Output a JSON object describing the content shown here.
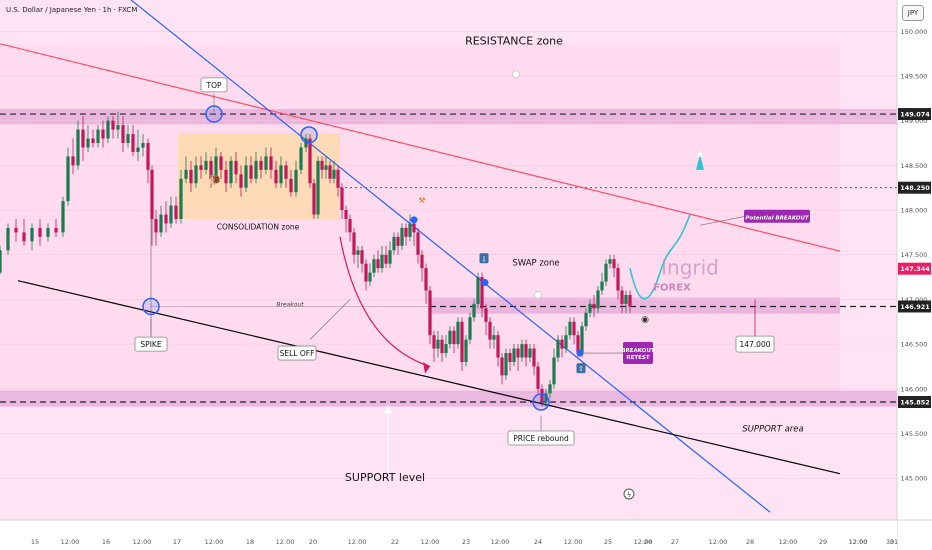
{
  "header": {
    "symbol": "U.S. Dollar / Japanese Yen · 1h · FXCM",
    "currency_button": "JPY"
  },
  "colors": {
    "background": "#fde3f3",
    "up_candle": "#1b7a4f",
    "down_candle": "#c2185b",
    "resistance_line": "#ff4d6d",
    "trend_line": "#2962ff",
    "support_line": "#000000",
    "projection": "#2ec4d6",
    "label_purple": "#9c27b0"
  },
  "chart_data": {
    "type": "candlestick",
    "y_axis": {
      "min": 144.7,
      "max": 150.35,
      "ticks": [
        "150.000",
        "149.500",
        "149.000",
        "148.500",
        "148.000",
        "147.500",
        "147.000",
        "146.500",
        "146.000",
        "145.500",
        "145.000"
      ]
    },
    "x_axis": {
      "ticks": [
        "15",
        "12:00",
        "16",
        "12:00",
        "17",
        "12:00",
        "18",
        "12:00",
        "20",
        "12:00",
        "22",
        "12:00",
        "23",
        "12:00",
        "24",
        "12:00",
        "25",
        "12:00",
        "26",
        "27",
        "12:00",
        "28",
        "12:00",
        "29",
        "12:00",
        "30",
        "12:00",
        "31"
      ]
    },
    "price_tags": [
      {
        "label": "149.074",
        "value": 149.074,
        "color": "#222222"
      },
      {
        "label": "148.250",
        "value": 148.25,
        "color": "#222222"
      },
      {
        "label": "147.344",
        "value": 147.344,
        "color": "#e91e63"
      },
      {
        "label": "146.921",
        "value": 146.921,
        "color": "#222222"
      },
      {
        "label": "145.852",
        "value": 145.852,
        "color": "#222222"
      }
    ],
    "zones": {
      "resistance": [
        148.96,
        149.13
      ],
      "swap": [
        146.84,
        147.02
      ],
      "support": [
        145.8,
        145.98
      ]
    },
    "trend_lines": {
      "resistance": [
        [
          0.0,
          149.86
        ],
        [
          840.0,
          147.54
        ]
      ],
      "blue": [
        [
          120.0,
          150.45
        ],
        [
          770.0,
          144.62
        ]
      ],
      "support": [
        [
          18.0,
          147.21
        ],
        [
          840.0,
          145.05
        ]
      ]
    },
    "annotations": {
      "resistance_zone": "RESISTANCE zone",
      "top": "TOP",
      "consolidation_zone": "CONSOLIDATION zone",
      "spike": "SPIKE",
      "sell_off": "SELL OFF",
      "swap_zone": "SWAP zone",
      "breakout": "Breakout",
      "potential_breakout": "Potential BREAKOUT",
      "breakout_retest": "BREAKOUT RETEST",
      "price_rebound": "PRICE rebound",
      "support_area": "SUPPORT area",
      "support_level": "SUPPORT level",
      "target_price": "147.000",
      "watermark": "Ingrid",
      "watermark_sub": "FOREX"
    },
    "candles": [
      [
        0,
        147.3,
        147.55,
        147.28,
        147.6
      ],
      [
        8,
        147.55,
        147.8,
        147.5,
        147.85
      ],
      [
        16,
        147.8,
        147.75,
        147.65,
        147.9
      ],
      [
        24,
        147.75,
        147.65,
        147.6,
        147.9
      ],
      [
        32,
        147.65,
        147.8,
        147.55,
        147.85
      ],
      [
        40,
        147.8,
        147.7,
        147.6,
        147.9
      ],
      [
        48,
        147.7,
        147.8,
        147.65,
        147.85
      ],
      [
        56,
        147.8,
        147.75,
        147.7,
        147.9
      ],
      [
        63,
        147.75,
        148.1,
        147.7,
        148.15
      ],
      [
        68,
        148.1,
        148.6,
        148.05,
        148.7
      ],
      [
        73,
        148.6,
        148.5,
        148.4,
        148.8
      ],
      [
        78,
        148.5,
        148.9,
        148.45,
        149.0
      ],
      [
        83,
        148.9,
        148.7,
        148.55,
        149.05
      ],
      [
        88,
        148.7,
        148.8,
        148.65,
        148.95
      ],
      [
        93,
        148.8,
        148.75,
        148.7,
        148.9
      ],
      [
        98,
        148.75,
        148.9,
        148.7,
        148.95
      ],
      [
        103,
        148.9,
        148.8,
        148.7,
        149.0
      ],
      [
        108,
        148.8,
        149.0,
        148.75,
        149.05
      ],
      [
        113,
        149.0,
        148.9,
        148.8,
        149.05
      ],
      [
        118,
        148.9,
        148.95,
        148.8,
        149.1
      ],
      [
        123,
        148.95,
        148.75,
        148.65,
        149.05
      ],
      [
        128,
        148.75,
        148.85,
        148.7,
        148.95
      ],
      [
        133,
        148.85,
        148.65,
        148.6,
        148.95
      ],
      [
        138,
        148.65,
        148.7,
        148.55,
        148.9
      ],
      [
        143,
        148.7,
        148.75,
        148.6,
        148.85
      ],
      [
        148,
        148.75,
        148.45,
        148.3,
        148.8
      ],
      [
        152,
        148.45,
        147.9,
        147.6,
        148.5
      ],
      [
        156,
        147.9,
        147.75,
        147.6,
        148.0
      ],
      [
        161,
        147.75,
        147.95,
        147.7,
        148.05
      ],
      [
        166,
        147.95,
        147.85,
        147.75,
        148.1
      ],
      [
        171,
        147.85,
        148.05,
        147.8,
        148.15
      ],
      [
        176,
        148.05,
        147.9,
        147.85,
        148.15
      ],
      [
        181,
        147.9,
        148.35,
        147.85,
        148.45
      ],
      [
        186,
        148.35,
        148.45,
        148.3,
        148.6
      ],
      [
        191,
        148.45,
        148.3,
        148.2,
        148.55
      ],
      [
        196,
        148.3,
        148.5,
        148.25,
        148.6
      ],
      [
        201,
        148.5,
        148.45,
        148.35,
        148.6
      ],
      [
        206,
        148.45,
        148.55,
        148.4,
        148.65
      ],
      [
        211,
        148.55,
        148.35,
        148.25,
        148.6
      ],
      [
        216,
        148.35,
        148.6,
        148.3,
        148.7
      ],
      [
        221,
        148.6,
        148.45,
        148.35,
        148.65
      ],
      [
        226,
        148.45,
        148.3,
        148.2,
        148.55
      ],
      [
        231,
        148.3,
        148.55,
        148.25,
        148.6
      ],
      [
        236,
        148.55,
        148.4,
        148.3,
        148.65
      ],
      [
        241,
        148.4,
        148.25,
        148.15,
        148.5
      ],
      [
        246,
        148.25,
        148.5,
        148.2,
        148.6
      ],
      [
        251,
        148.5,
        148.35,
        148.3,
        148.6
      ],
      [
        256,
        148.35,
        148.55,
        148.3,
        148.65
      ],
      [
        261,
        148.55,
        148.45,
        148.35,
        148.6
      ],
      [
        266,
        148.45,
        148.6,
        148.4,
        148.7
      ],
      [
        271,
        148.6,
        148.45,
        148.35,
        148.7
      ],
      [
        276,
        148.45,
        148.3,
        148.25,
        148.55
      ],
      [
        281,
        148.3,
        148.5,
        148.25,
        148.6
      ],
      [
        286,
        148.5,
        148.35,
        148.25,
        148.55
      ],
      [
        291,
        148.35,
        148.2,
        148.15,
        148.45
      ],
      [
        296,
        148.2,
        148.45,
        148.15,
        148.55
      ],
      [
        301,
        148.45,
        148.7,
        148.4,
        148.75
      ],
      [
        306,
        148.7,
        148.8,
        148.65,
        148.85
      ],
      [
        310,
        148.8,
        148.3,
        148.25,
        148.85
      ],
      [
        314,
        148.3,
        147.95,
        147.9,
        148.35
      ],
      [
        318,
        147.95,
        148.55,
        147.9,
        148.6
      ],
      [
        322,
        148.55,
        148.45,
        148.35,
        148.6
      ],
      [
        326,
        148.45,
        148.5,
        148.35,
        148.6
      ],
      [
        330,
        148.5,
        148.35,
        148.3,
        148.55
      ],
      [
        334,
        148.35,
        148.45,
        148.3,
        148.55
      ],
      [
        338,
        148.45,
        148.25,
        148.15,
        148.5
      ],
      [
        342,
        148.25,
        148.0,
        147.9,
        148.3
      ],
      [
        346,
        148.0,
        147.9,
        147.75,
        148.05
      ],
      [
        350,
        147.9,
        147.75,
        147.65,
        147.95
      ],
      [
        354,
        147.75,
        147.5,
        147.4,
        147.8
      ],
      [
        358,
        147.5,
        147.55,
        147.35,
        147.6
      ],
      [
        362,
        147.55,
        147.4,
        147.3,
        147.6
      ],
      [
        366,
        147.4,
        147.2,
        147.1,
        147.45
      ],
      [
        370,
        147.2,
        147.3,
        147.15,
        147.4
      ],
      [
        374,
        147.3,
        147.45,
        147.25,
        147.5
      ],
      [
        378,
        147.45,
        147.35,
        147.3,
        147.55
      ],
      [
        382,
        147.35,
        147.5,
        147.3,
        147.6
      ],
      [
        386,
        147.5,
        147.4,
        147.35,
        147.6
      ],
      [
        390,
        147.4,
        147.55,
        147.35,
        147.65
      ],
      [
        394,
        147.55,
        147.7,
        147.5,
        147.75
      ],
      [
        398,
        147.7,
        147.6,
        147.5,
        147.75
      ],
      [
        402,
        147.6,
        147.8,
        147.55,
        147.85
      ],
      [
        406,
        147.8,
        147.7,
        147.6,
        147.85
      ],
      [
        410,
        147.7,
        147.85,
        147.65,
        147.95
      ],
      [
        414,
        147.85,
        147.75,
        147.6,
        147.9
      ],
      [
        418,
        147.75,
        147.5,
        147.4,
        147.8
      ],
      [
        422,
        147.5,
        147.35,
        147.2,
        147.55
      ],
      [
        426,
        147.35,
        147.1,
        146.95,
        147.4
      ],
      [
        430,
        147.1,
        146.6,
        146.5,
        147.15
      ],
      [
        434,
        146.6,
        146.45,
        146.3,
        146.65
      ],
      [
        438,
        146.45,
        146.55,
        146.35,
        146.65
      ],
      [
        442,
        146.55,
        146.4,
        146.3,
        146.6
      ],
      [
        446,
        146.4,
        146.5,
        146.35,
        146.6
      ],
      [
        450,
        146.5,
        146.65,
        146.45,
        146.7
      ],
      [
        454,
        146.65,
        146.5,
        146.4,
        146.7
      ],
      [
        458,
        146.5,
        146.75,
        146.45,
        146.8
      ],
      [
        462,
        146.75,
        146.3,
        146.2,
        146.8
      ],
      [
        466,
        146.3,
        146.55,
        146.25,
        146.6
      ],
      [
        470,
        146.55,
        146.8,
        146.5,
        146.85
      ],
      [
        474,
        146.8,
        146.95,
        146.75,
        147.0
      ],
      [
        478,
        146.95,
        147.25,
        146.9,
        147.3
      ],
      [
        482,
        147.25,
        146.9,
        146.8,
        147.3
      ],
      [
        486,
        146.9,
        146.75,
        146.6,
        146.95
      ],
      [
        490,
        146.75,
        146.55,
        146.45,
        146.8
      ],
      [
        494,
        146.55,
        146.6,
        146.45,
        146.7
      ],
      [
        498,
        146.6,
        146.35,
        146.25,
        146.65
      ],
      [
        502,
        146.35,
        146.15,
        146.05,
        146.4
      ],
      [
        506,
        146.15,
        146.4,
        146.1,
        146.45
      ],
      [
        510,
        146.4,
        146.3,
        146.2,
        146.45
      ],
      [
        514,
        146.3,
        146.45,
        146.25,
        146.5
      ],
      [
        518,
        146.45,
        146.35,
        146.2,
        146.5
      ],
      [
        522,
        146.35,
        146.5,
        146.3,
        146.55
      ],
      [
        526,
        146.5,
        146.35,
        146.25,
        146.55
      ],
      [
        530,
        146.35,
        146.45,
        146.3,
        146.5
      ],
      [
        534,
        146.45,
        146.25,
        146.15,
        146.5
      ],
      [
        538,
        146.25,
        146.0,
        145.95,
        146.3
      ],
      [
        542,
        146.0,
        145.85,
        145.8,
        146.05
      ],
      [
        546,
        145.85,
        145.95,
        145.8,
        146.0
      ],
      [
        550,
        145.95,
        146.05,
        145.9,
        146.1
      ],
      [
        554,
        146.05,
        146.35,
        146.0,
        146.45
      ],
      [
        558,
        146.35,
        146.55,
        146.3,
        146.6
      ],
      [
        562,
        146.55,
        146.45,
        146.35,
        146.6
      ],
      [
        566,
        146.45,
        146.6,
        146.4,
        146.7
      ],
      [
        570,
        146.6,
        146.75,
        146.55,
        146.8
      ],
      [
        574,
        146.75,
        146.6,
        146.5,
        146.8
      ],
      [
        578,
        146.6,
        146.4,
        146.35,
        146.65
      ],
      [
        582,
        146.4,
        146.7,
        146.35,
        146.75
      ],
      [
        586,
        146.7,
        146.85,
        146.65,
        146.9
      ],
      [
        590,
        146.85,
        146.95,
        146.8,
        147.0
      ],
      [
        594,
        146.95,
        146.9,
        146.8,
        147.05
      ],
      [
        598,
        146.9,
        147.1,
        146.85,
        147.15
      ],
      [
        602,
        147.1,
        147.2,
        147.05,
        147.3
      ],
      [
        606,
        147.2,
        147.4,
        147.15,
        147.45
      ],
      [
        610,
        147.4,
        147.45,
        147.35,
        147.5
      ],
      [
        614,
        147.45,
        147.35,
        147.25,
        147.5
      ],
      [
        618,
        147.35,
        147.1,
        147.0,
        147.4
      ],
      [
        622,
        147.1,
        146.95,
        146.85,
        147.15
      ],
      [
        626,
        146.95,
        147.05,
        146.85,
        147.1
      ],
      [
        630,
        147.05,
        146.92,
        146.85,
        147.1
      ]
    ],
    "projection_path": [
      [
        630,
        147.35
      ],
      [
        640,
        146.85
      ],
      [
        650,
        146.95
      ],
      [
        660,
        147.3
      ],
      [
        675,
        147.5
      ],
      [
        690,
        147.95
      ],
      [
        700,
        148.45
      ]
    ]
  }
}
